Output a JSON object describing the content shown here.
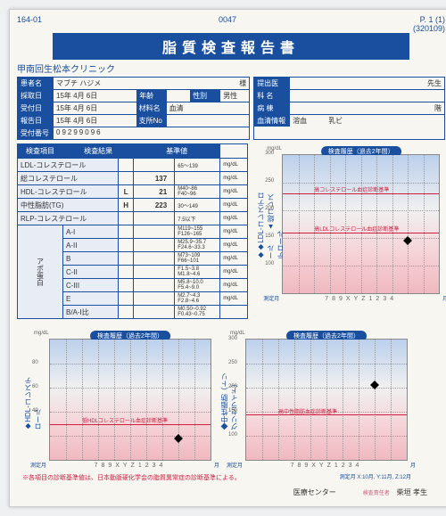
{
  "title": "脂質検査報告書",
  "code_left": "164-01",
  "code_right": "0047",
  "page": "P. 1 (1)",
  "file_no": "(320109)",
  "clinic": "甲南回生松本クリニック",
  "left_box": {
    "patient_l": "患者名",
    "patient": "マブチ ハジメ",
    "patient_suf": "様",
    "sample_l": "採取日",
    "sample": "15年 4月 6日",
    "age_l": "年齢",
    "age": "",
    "sex_l": "性別",
    "sex": "男性",
    "recv_l": "受付日",
    "recv": "15年 4月 6日",
    "mat_l": "材料名",
    "mat": "血清",
    "report_l": "報告日",
    "report": "15年 4月 6日",
    "branch_l": "支所No",
    "branch": "",
    "recvno_l": "受付番号",
    "recvno": "09299096"
  },
  "right_box": {
    "submit_l": "提出医",
    "doctor_suf": "先生",
    "dept_l": "科 名",
    "ward_l": "病 棟",
    "floor": "階",
    "blood_l": "血清情報",
    "blood_v1": "溶血",
    "blood_v2": "乳ビ"
  },
  "table": {
    "h1": "検査項目",
    "h2": "検査結果",
    "h3": "基準値",
    "rows": [
      {
        "n": "LDL-コレステロール",
        "v": "",
        "r": "65～139",
        "u": "mg/dL"
      },
      {
        "n": "総コレステロール",
        "v": "137",
        "r": "",
        "u": "mg/dL"
      },
      {
        "n": "HDL-コレステロール",
        "f": "L",
        "v": "21",
        "r": "M40~86 F40~96",
        "u": "mg/dL"
      },
      {
        "n": "中性脂肪(TG)",
        "f": "H",
        "v": "223",
        "r": "30～149",
        "u": "mg/dL"
      },
      {
        "n": "RLP-コレステロール",
        "v": "",
        "r": "7.5以下",
        "u": "mg/dL"
      },
      {
        "n": "A-I",
        "v": "",
        "r": "M119~155 F126~165",
        "u": "mg/dL"
      },
      {
        "n": "A-II",
        "v": "",
        "r": "M25.9~35.7 F24.6~33.3",
        "u": "mg/dL"
      },
      {
        "n": "B",
        "v": "",
        "r": "M73~109 F66~101",
        "u": "mg/dL"
      },
      {
        "n": "C-II",
        "v": "",
        "r": "F1.5~3.8 M1.8~4.6",
        "u": "mg/dL"
      },
      {
        "n": "C-III",
        "v": "",
        "r": "M5.8~10.0 F5.4~9.0",
        "u": "mg/dL"
      },
      {
        "n": "E",
        "v": "",
        "r": "M2.7~4.3 F2.8~4.6",
        "u": "mg/dL"
      },
      {
        "n": "B/A-I比",
        "v": "",
        "r": "M0.50~0.92 F0.43~0.75",
        "u": ""
      }
    ],
    "group": "アポ蛋白"
  },
  "charts": {
    "history_title": "検査履歴（過去2年間）",
    "top": {
      "ylabel": "◆LDL-コレステロール　　▲総コレステロール",
      "yticks": [
        "300",
        "250",
        "200",
        "150",
        "100"
      ],
      "line1": "高コレステロール血症診断基準",
      "line2": "高LDLコレステロール血症診断基準",
      "points": [
        {
          "x": 80,
          "y": 62
        }
      ]
    },
    "bl": {
      "ylabel": "◆HDL-コレステロール",
      "yticks": [
        "",
        "80",
        "60",
        "40",
        ""
      ],
      "line": "低HDLコレステロール血症診断基準",
      "points": [
        {
          "x": 80,
          "y": 82
        }
      ]
    },
    "br": {
      "ylabel": "◆中性脂肪（トリグリセライド）",
      "yticks": [
        "300",
        "250",
        "200",
        "150",
        "100"
      ],
      "line": "高中性脂肪血症診断基準",
      "points": [
        {
          "x": 80,
          "y": 38
        }
      ]
    },
    "xaxis": "789XYZ1234",
    "xl": "測定月",
    "xr": "月",
    "legend": "測定月 X:10月, Y:11月, Z:12月"
  },
  "footnote": "※各項目の診断基準値は、日本動脈硬化学会の脂質異常症の診断基準による。",
  "footer": {
    "center": "医療センター",
    "sig_l": "検査責任者",
    "sig": "柴垣 孝生"
  }
}
